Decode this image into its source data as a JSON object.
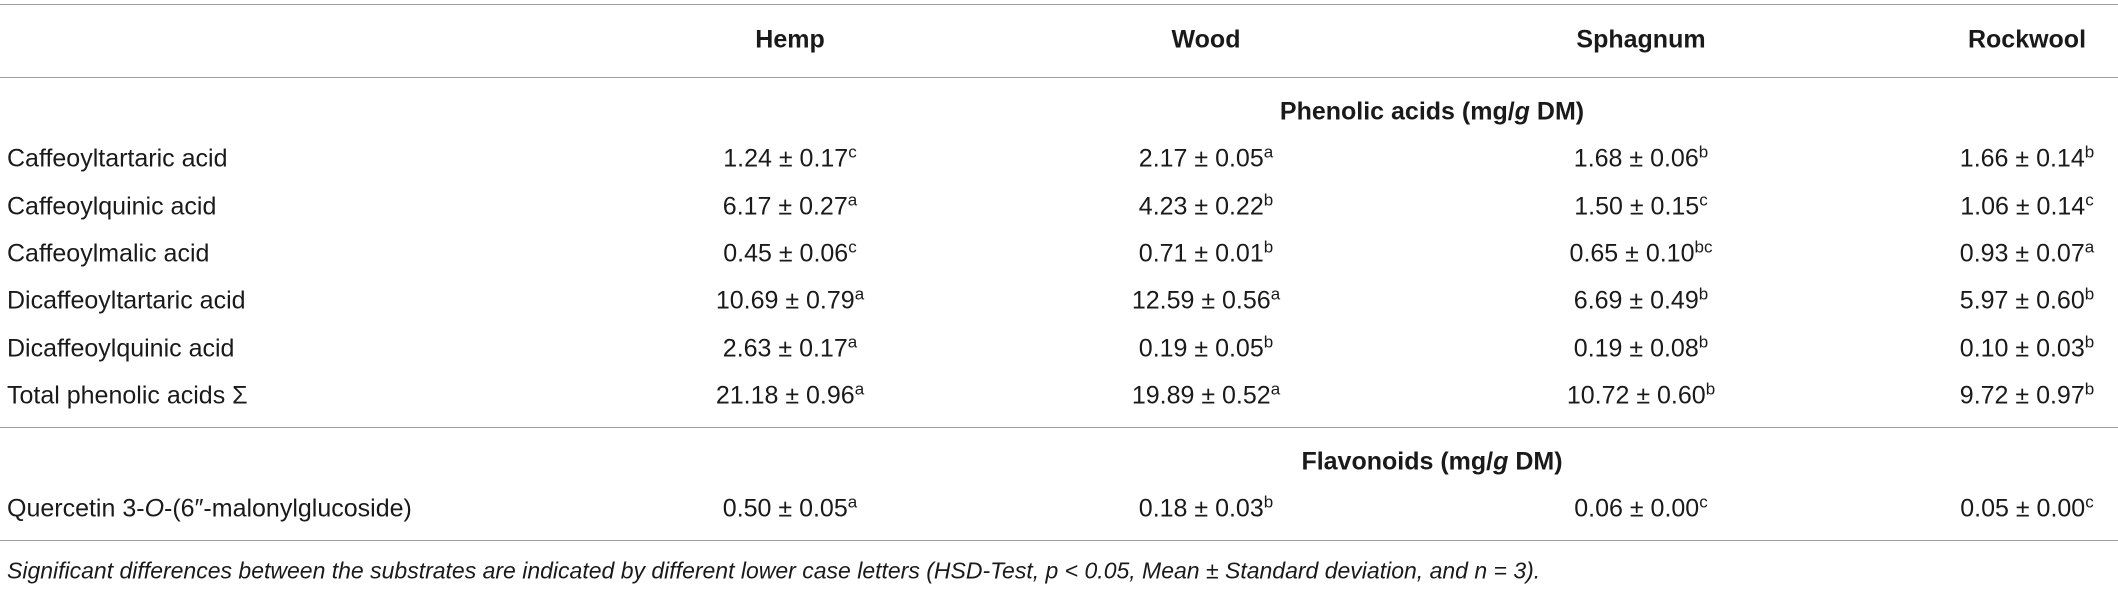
{
  "table": {
    "columns": [
      "Hemp",
      "Wood",
      "Sphagnum",
      "Rockwool"
    ],
    "sections": [
      {
        "title": [
          "Phenolic acids (mg/",
          "g",
          " DM)"
        ],
        "rows": [
          {
            "label": [
              "Caffeoyltartaric acid"
            ],
            "cells": [
              {
                "value": "1.24 ± 0.17",
                "sup": "c"
              },
              {
                "value": "2.17 ± 0.05",
                "sup": "a"
              },
              {
                "value": "1.68 ± 0.06",
                "sup": "b"
              },
              {
                "value": "1.66 ± 0.14",
                "sup": "b"
              }
            ]
          },
          {
            "label": [
              "Caffeoylquinic acid"
            ],
            "cells": [
              {
                "value": "6.17 ± 0.27",
                "sup": "a"
              },
              {
                "value": "4.23 ± 0.22",
                "sup": "b"
              },
              {
                "value": "1.50 ± 0.15",
                "sup": "c"
              },
              {
                "value": "1.06 ± 0.14",
                "sup": "c"
              }
            ]
          },
          {
            "label": [
              "Caffeoylmalic acid"
            ],
            "cells": [
              {
                "value": "0.45 ± 0.06",
                "sup": "c"
              },
              {
                "value": "0.71 ± 0.01",
                "sup": "b"
              },
              {
                "value": "0.65 ± 0.10",
                "sup": "bc"
              },
              {
                "value": "0.93 ± 0.07",
                "sup": "a"
              }
            ]
          },
          {
            "label": [
              "Dicaffeoyltartaric acid"
            ],
            "cells": [
              {
                "value": "10.69 ± 0.79",
                "sup": "a"
              },
              {
                "value": "12.59 ± 0.56",
                "sup": "a"
              },
              {
                "value": "6.69 ± 0.49",
                "sup": "b"
              },
              {
                "value": "5.97 ± 0.60",
                "sup": "b"
              }
            ]
          },
          {
            "label": [
              "Dicaffeoylquinic acid"
            ],
            "cells": [
              {
                "value": "2.63 ± 0.17",
                "sup": "a"
              },
              {
                "value": "0.19 ± 0.05",
                "sup": "b"
              },
              {
                "value": "0.19 ± 0.08",
                "sup": "b"
              },
              {
                "value": "0.10 ± 0.03",
                "sup": "b"
              }
            ]
          },
          {
            "label": [
              "Total phenolic acids Σ"
            ],
            "cells": [
              {
                "value": "21.18 ± 0.96",
                "sup": "a"
              },
              {
                "value": "19.89 ± 0.52",
                "sup": "a"
              },
              {
                "value": "10.72 ± 0.60",
                "sup": "b"
              },
              {
                "value": "9.72 ± 0.97",
                "sup": "b"
              }
            ]
          }
        ]
      },
      {
        "title": [
          "Flavonoids (mg/",
          "g",
          " DM)"
        ],
        "rows": [
          {
            "label": [
              "Quercetin 3-",
              "O",
              "-(6″-malonylglucoside)"
            ],
            "cells": [
              {
                "value": "0.50 ± 0.05",
                "sup": "a"
              },
              {
                "value": "0.18 ± 0.03",
                "sup": "b"
              },
              {
                "value": "0.06 ± 0.00",
                "sup": "c"
              },
              {
                "value": "0.05 ± 0.00",
                "sup": "c"
              }
            ]
          }
        ]
      }
    ],
    "footnote": "Significant differences between the substrates are indicated by different lower case letters (HSD-Test, p < 0.05, Mean ± Standard deviation, and n = 3)."
  }
}
